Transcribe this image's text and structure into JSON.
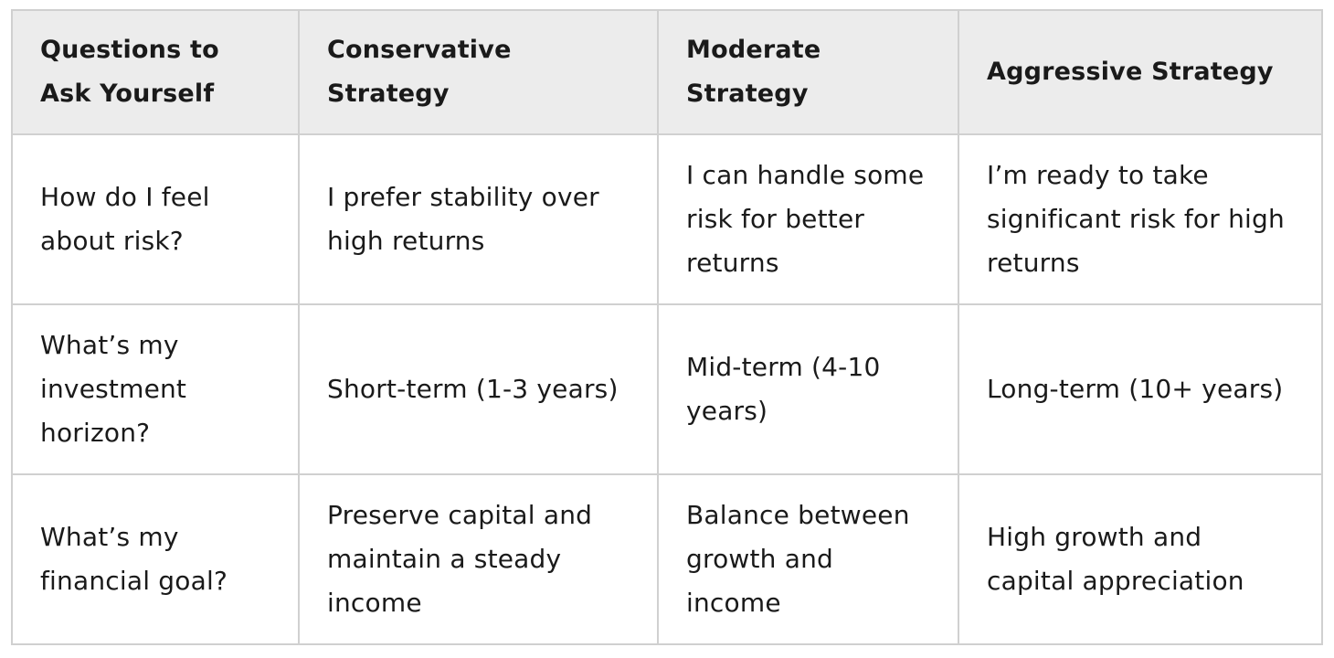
{
  "table": {
    "headers": [
      "Questions to Ask Yourself",
      "Conservative Strategy",
      "Moderate Strategy",
      "Aggressive Strategy"
    ],
    "rows": [
      {
        "question": "How do I feel about risk?",
        "conservative": "I prefer stability over high returns",
        "moderate": "I can handle some risk for better returns",
        "aggressive": "I’m ready to take significant risk for high returns"
      },
      {
        "question": "What’s my investment horizon?",
        "conservative": "Short-term (1-3 years)",
        "moderate": "Mid-term (4-10 years)",
        "aggressive": "Long-term (10+ years)"
      },
      {
        "question": "What’s my financial goal?",
        "conservative": "Preserve capital and maintain a steady income",
        "moderate": "Balance between growth and income",
        "aggressive": "High growth and capital appreciation"
      }
    ]
  },
  "colors": {
    "header_bg": "#ececec",
    "border": "#d0d0d0",
    "text": "#1a1a1a"
  }
}
